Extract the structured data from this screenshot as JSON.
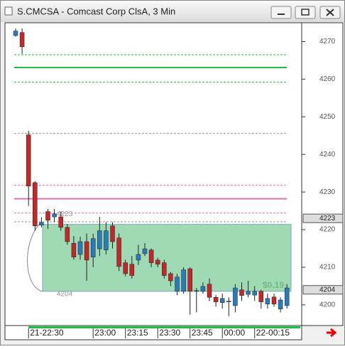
{
  "window": {
    "title": "S.CMCSA - Comcast Corp ClsA, 3 Min"
  },
  "chart_data": {
    "type": "candlestick",
    "categories": [
      null,
      null,
      "21-22:30",
      null,
      null,
      null,
      null,
      null,
      null,
      null,
      null,
      null,
      "23:00",
      null,
      null,
      null,
      null,
      "23:15",
      null,
      null,
      null,
      null,
      "23:30",
      null,
      null,
      null,
      null,
      "23:45",
      null,
      null,
      null,
      null,
      "00:00",
      null,
      null,
      null,
      null,
      "22-00:15",
      null,
      null,
      null,
      null,
      null
    ],
    "open": [
      4271.6,
      4272.4,
      4245.2,
      4232.5,
      4221.2,
      4224.8,
      4223.4,
      4223.4,
      4220.6,
      4216.4,
      4213.4,
      4216.8,
      4212.7,
      4214.9,
      4214.6,
      4221.0,
      4217.8,
      4211.2,
      4210.8,
      4211.9,
      4213.6,
      4214.6,
      4211.9,
      4211.2,
      4208.3,
      4203.6,
      4203.6,
      4209.6,
      4203.6,
      4203.6,
      4205.5,
      4202.0,
      4200.6,
      4201.0,
      4199.8,
      4204.0,
      4202.8,
      4202.6,
      4203.6,
      4200.2,
      4202.1,
      4198.9,
      4199.8
    ],
    "high": [
      4273.5,
      4273.5,
      4246.3,
      4232.9,
      4223.3,
      4225.5,
      4225.5,
      4224.8,
      4221.5,
      4218.3,
      4218.1,
      4219.0,
      4218.9,
      4223.4,
      4222.0,
      4222.0,
      4219.0,
      4212.0,
      4213.0,
      4216.0,
      4216.4,
      4215.0,
      4212.5,
      4212.0,
      4208.7,
      4208.3,
      4210.0,
      4210.0,
      4204.5,
      4206.0,
      4207.0,
      4202.6,
      4203.0,
      4202.0,
      4205.5,
      4206.0,
      4206.4,
      4205.0,
      4204.0,
      4203.0,
      4203.0,
      4202.0,
      4205.5
    ],
    "low": [
      4271.3,
      4266.7,
      4226.3,
      4219.7,
      4220.6,
      4220.2,
      4222.0,
      4219.7,
      4216.0,
      4212.0,
      4212.0,
      4206.4,
      4210.0,
      4213.0,
      4213.4,
      4215.0,
      4209.0,
      4207.6,
      4207.0,
      4210.6,
      4213.0,
      4210.0,
      4210.0,
      4207.0,
      4205.0,
      4202.6,
      4203.0,
      4197.4,
      4198.0,
      4203.0,
      4201.0,
      4199.5,
      4199.0,
      4197.0,
      4198.0,
      4201.0,
      4202.0,
      4201.0,
      4199.0,
      4199.0,
      4199.5,
      4198.0,
      4199.0
    ],
    "close": [
      4272.8,
      4268.6,
      4231.6,
      4221.0,
      4221.9,
      4222.5,
      4224.2,
      4220.6,
      4216.8,
      4212.7,
      4216.8,
      4211.9,
      4217.6,
      4219.7,
      4219.7,
      4216.8,
      4210.2,
      4208.3,
      4207.8,
      4213.4,
      4214.9,
      4211.2,
      4210.8,
      4207.8,
      4206.4,
      4207.4,
      4209.3,
      4203.6,
      4203.8,
      4204.9,
      4202.0,
      4200.8,
      4201.7,
      4201.0,
      4204.5,
      4202.5,
      4203.6,
      4203.6,
      4200.8,
      4201.7,
      4200.2,
      4201.3,
      4204.5
    ],
    "up_color": "#2b7bb9",
    "down_color": "#c0282a",
    "ylim": [
      4194.5,
      4275
    ],
    "yticks": [
      4200,
      4210,
      4220,
      4230,
      4240,
      4250,
      4260,
      4270
    ],
    "price_markers": [
      4223,
      4204
    ],
    "levels": [
      {
        "value": 4266.5,
        "color": "#22bb44",
        "style": "dashed"
      },
      {
        "value": 4263.1,
        "color": "#22bb44",
        "style": "solid"
      },
      {
        "value": 4259.2,
        "color": "#22bb44",
        "style": "dashed"
      },
      {
        "value": 4245.6,
        "color": "#999999",
        "style": "dashed"
      },
      {
        "value": 4231.8,
        "color": "#e070a8",
        "style": "dashed"
      },
      {
        "value": 4228.2,
        "color": "#e070a8",
        "style": "solid"
      },
      {
        "value": 4224.4,
        "color": "#e070a8",
        "style": "dashed"
      },
      {
        "value": 4222.1,
        "color": "#999999",
        "style": "dashed"
      }
    ],
    "measure_box": {
      "high": 4221.4,
      "low": 4203.6,
      "color": "#8fd4a8",
      "label": "$0.19"
    }
  }
}
